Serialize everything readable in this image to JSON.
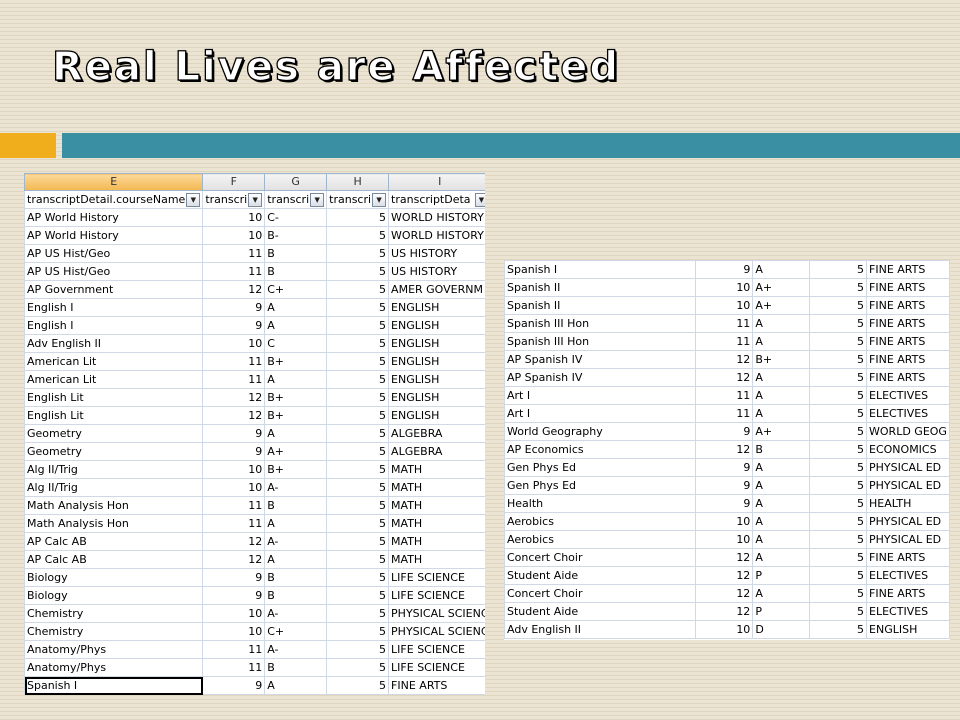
{
  "slide": {
    "title": "Real Lives are Affected"
  },
  "sheet1": {
    "columns": [
      "E",
      "F",
      "G",
      "H",
      "I"
    ],
    "filter_headers": [
      "transcriptDetail.courseName",
      "transcri",
      "transcri",
      "transcri",
      "transcriptDeta"
    ],
    "rows": [
      [
        "AP World History",
        "10",
        "C-",
        "5",
        "WORLD HISTORY"
      ],
      [
        "AP World History",
        "10",
        "B-",
        "5",
        "WORLD HISTORY"
      ],
      [
        "AP US Hist/Geo",
        "11",
        "B",
        "5",
        "US HISTORY"
      ],
      [
        "AP US Hist/Geo",
        "11",
        "B",
        "5",
        "US HISTORY"
      ],
      [
        "AP Government",
        "12",
        "C+",
        "5",
        "AMER GOVERNM"
      ],
      [
        "English I",
        "9",
        "A",
        "5",
        "ENGLISH"
      ],
      [
        "English I",
        "9",
        "A",
        "5",
        "ENGLISH"
      ],
      [
        "Adv English II",
        "10",
        "C",
        "5",
        "ENGLISH"
      ],
      [
        "American Lit",
        "11",
        "B+",
        "5",
        "ENGLISH"
      ],
      [
        "American Lit",
        "11",
        "A",
        "5",
        "ENGLISH"
      ],
      [
        "English Lit",
        "12",
        "B+",
        "5",
        "ENGLISH"
      ],
      [
        "English Lit",
        "12",
        "B+",
        "5",
        "ENGLISH"
      ],
      [
        "Geometry",
        "9",
        "A",
        "5",
        "ALGEBRA"
      ],
      [
        "Geometry",
        "9",
        "A+",
        "5",
        "ALGEBRA"
      ],
      [
        "Alg II/Trig",
        "10",
        "B+",
        "5",
        "MATH"
      ],
      [
        "Alg II/Trig",
        "10",
        "A-",
        "5",
        "MATH"
      ],
      [
        "Math Analysis Hon",
        "11",
        "B",
        "5",
        "MATH"
      ],
      [
        "Math Analysis Hon",
        "11",
        "A",
        "5",
        "MATH"
      ],
      [
        "AP Calc AB",
        "12",
        "A-",
        "5",
        "MATH"
      ],
      [
        "AP Calc AB",
        "12",
        "A",
        "5",
        "MATH"
      ],
      [
        "Biology",
        "9",
        "B",
        "5",
        "LIFE SCIENCE"
      ],
      [
        "Biology",
        "9",
        "B",
        "5",
        "LIFE SCIENCE"
      ],
      [
        "Chemistry",
        "10",
        "A-",
        "5",
        "PHYSICAL SCIENC"
      ],
      [
        "Chemistry",
        "10",
        "C+",
        "5",
        "PHYSICAL SCIENC"
      ],
      [
        "Anatomy/Phys",
        "11",
        "A-",
        "5",
        "LIFE SCIENCE"
      ],
      [
        "Anatomy/Phys",
        "11",
        "B",
        "5",
        "LIFE SCIENCE"
      ],
      [
        "Spanish I",
        "9",
        "A",
        "5",
        "FINE ARTS"
      ]
    ]
  },
  "sheet2": {
    "rows": [
      [
        "Spanish I",
        "9",
        "A",
        "5",
        "FINE ARTS"
      ],
      [
        "Spanish II",
        "10",
        "A+",
        "5",
        "FINE ARTS"
      ],
      [
        "Spanish II",
        "10",
        "A+",
        "5",
        "FINE ARTS"
      ],
      [
        "Spanish III Hon",
        "11",
        "A",
        "5",
        "FINE ARTS"
      ],
      [
        "Spanish III Hon",
        "11",
        "A",
        "5",
        "FINE ARTS"
      ],
      [
        "AP Spanish IV",
        "12",
        "B+",
        "5",
        "FINE ARTS"
      ],
      [
        "AP Spanish IV",
        "12",
        "A",
        "5",
        "FINE ARTS"
      ],
      [
        "Art I",
        "11",
        "A",
        "5",
        "ELECTIVES"
      ],
      [
        "Art I",
        "11",
        "A",
        "5",
        "ELECTIVES"
      ],
      [
        "World Geography",
        "9",
        "A+",
        "5",
        "WORLD GEOG"
      ],
      [
        "AP Economics",
        "12",
        "B",
        "5",
        "ECONOMICS"
      ],
      [
        "Gen Phys Ed",
        "9",
        "A",
        "5",
        "PHYSICAL ED"
      ],
      [
        "Gen Phys Ed",
        "9",
        "A",
        "5",
        "PHYSICAL ED"
      ],
      [
        "Health",
        "9",
        "A",
        "5",
        "HEALTH"
      ],
      [
        "Aerobics",
        "10",
        "A",
        "5",
        "PHYSICAL ED"
      ],
      [
        "Aerobics",
        "10",
        "A",
        "5",
        "PHYSICAL ED"
      ],
      [
        "Concert Choir",
        "12",
        "A",
        "5",
        "FINE ARTS"
      ],
      [
        "Student Aide",
        "12",
        "P",
        "5",
        "ELECTIVES"
      ],
      [
        "Concert Choir",
        "12",
        "A",
        "5",
        "FINE ARTS"
      ],
      [
        "Student Aide",
        "12",
        "P",
        "5",
        "ELECTIVES"
      ],
      [
        "Adv English II",
        "10",
        "D",
        "5",
        "ENGLISH"
      ]
    ]
  }
}
